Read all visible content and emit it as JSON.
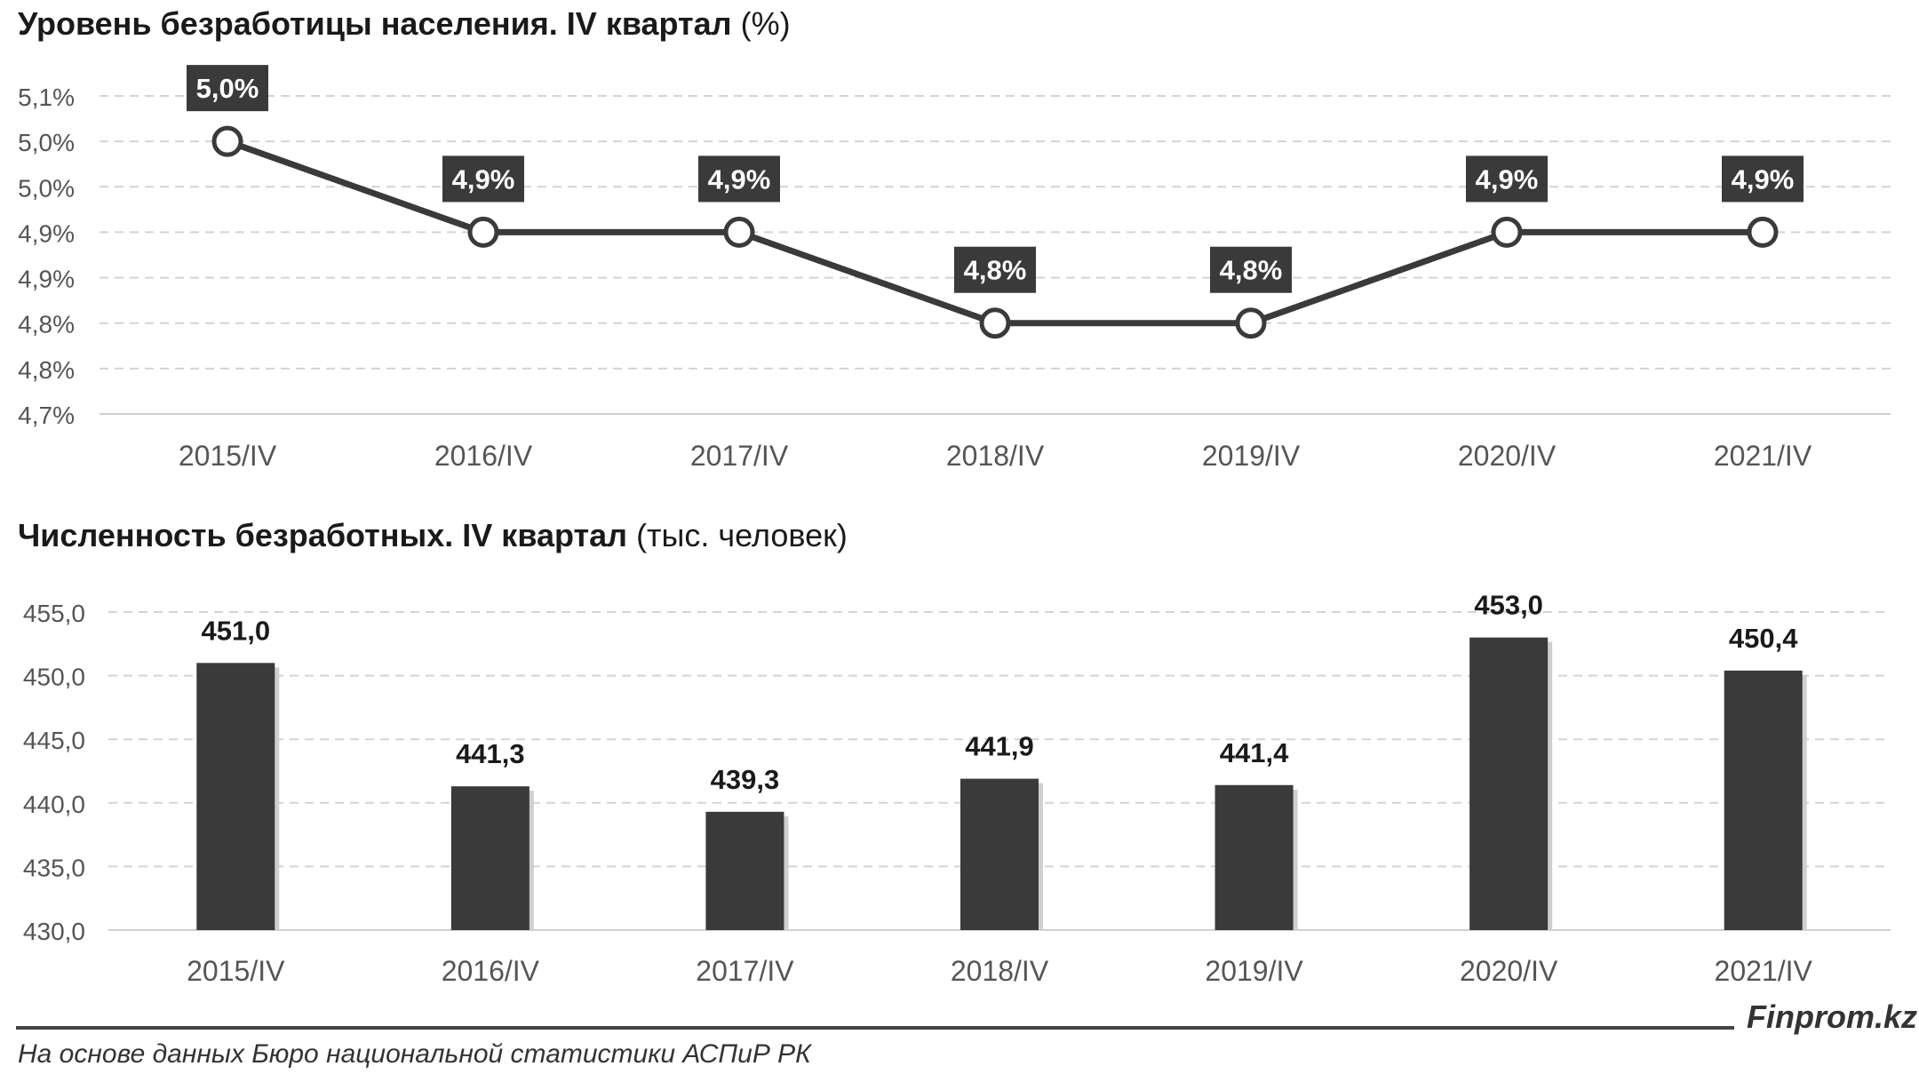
{
  "charts": {
    "rate": {
      "title_bold": "Уровень безработицы населения. IV квартал",
      "title_unit": "(%)"
    },
    "count": {
      "title_bold": "Численность безработных. IV квартал",
      "title_unit": "(тыс. человек)"
    }
  },
  "chart_data": [
    {
      "type": "line",
      "categories": [
        "2015/IV",
        "2016/IV",
        "2017/IV",
        "2018/IV",
        "2019/IV",
        "2020/IV",
        "2021/IV"
      ],
      "values": [
        5.02,
        4.92,
        4.92,
        4.82,
        4.82,
        4.92,
        4.92
      ],
      "data_labels": [
        "5,0%",
        "4,9%",
        "4,9%",
        "4,8%",
        "4,8%",
        "4,9%",
        "4,9%"
      ],
      "y_ticks": [
        "5,1%",
        "5,0%",
        "5,0%",
        "4,9%",
        "4,9%",
        "4,8%",
        "4,8%",
        "4,7%"
      ],
      "ylim": [
        4.72,
        5.07
      ],
      "grid": true,
      "color": "#3a3a3a"
    },
    {
      "type": "bar",
      "categories": [
        "2015/IV",
        "2016/IV",
        "2017/IV",
        "2018/IV",
        "2019/IV",
        "2020/IV",
        "2021/IV"
      ],
      "values": [
        451.0,
        441.3,
        439.3,
        441.9,
        441.4,
        453.0,
        450.4
      ],
      "data_labels": [
        "451,0",
        "441,3",
        "439,3",
        "441,9",
        "441,4",
        "453,0",
        "450,4"
      ],
      "y_ticks": [
        "455,0",
        "450,0",
        "445,0",
        "440,0",
        "435,0",
        "430,0"
      ],
      "ylim": [
        430,
        455
      ],
      "grid": true,
      "color": "#3a3a3a"
    }
  ],
  "footer": {
    "brand": "Finprom.kz",
    "source": "На основе данных Бюро национальной статистики АСПиР РК"
  }
}
